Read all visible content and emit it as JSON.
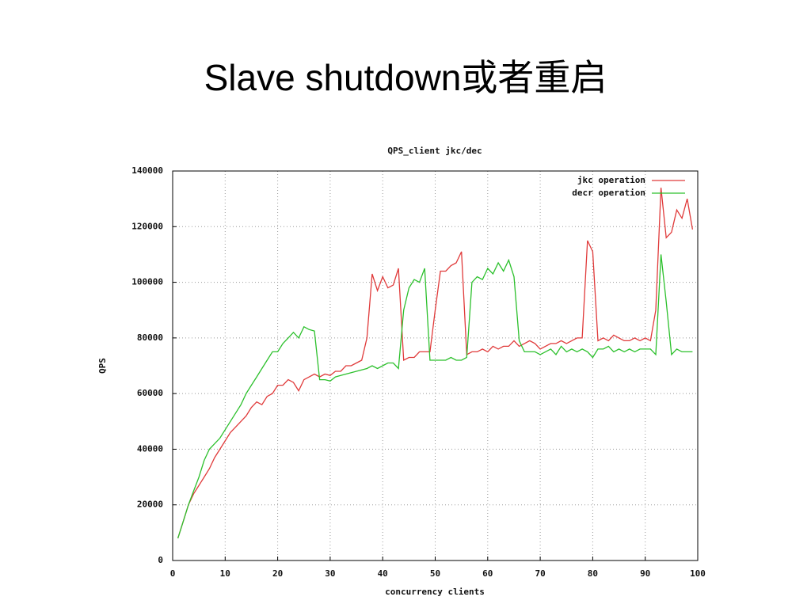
{
  "title": "Slave shutdown或者重启",
  "chart_data": {
    "type": "line",
    "title": "QPS_client jkc/dec",
    "x_label": "concurrency clients",
    "y_label": "QPS",
    "xlim": [
      0,
      100
    ],
    "xticks": [
      0,
      10,
      20,
      30,
      40,
      50,
      60,
      70,
      80,
      90,
      100
    ],
    "ylim": [
      0,
      140000
    ],
    "yticks": [
      0,
      20000,
      40000,
      60000,
      80000,
      100000,
      120000,
      140000
    ],
    "grid": true,
    "legend": "upper right",
    "x": [
      1,
      2,
      3,
      4,
      5,
      6,
      7,
      8,
      9,
      10,
      11,
      12,
      13,
      14,
      15,
      16,
      17,
      18,
      19,
      20,
      21,
      22,
      23,
      24,
      25,
      26,
      27,
      28,
      29,
      30,
      31,
      32,
      33,
      34,
      35,
      36,
      37,
      38,
      39,
      40,
      41,
      42,
      43,
      44,
      45,
      46,
      47,
      48,
      49,
      50,
      51,
      52,
      53,
      54,
      55,
      56,
      57,
      58,
      59,
      60,
      61,
      62,
      63,
      64,
      65,
      66,
      67,
      68,
      69,
      70,
      71,
      72,
      73,
      74,
      75,
      76,
      77,
      78,
      79,
      80,
      81,
      82,
      83,
      84,
      85,
      86,
      87,
      88,
      89,
      90,
      91,
      92,
      93,
      94,
      95,
      96,
      97,
      98,
      99
    ],
    "series": [
      {
        "name": "jkc operation",
        "color": "#e03a3a",
        "values": [
          8000,
          14000,
          20000,
          24000,
          27000,
          30000,
          33000,
          37000,
          40000,
          43000,
          46000,
          48000,
          50000,
          52000,
          55000,
          57000,
          56000,
          59000,
          60000,
          63000,
          63000,
          65000,
          64000,
          61000,
          65000,
          66000,
          67000,
          66000,
          67000,
          66500,
          68000,
          68000,
          70000,
          70000,
          71000,
          72000,
          80000,
          103000,
          97000,
          102000,
          98000,
          99000,
          105000,
          72000,
          73000,
          73000,
          75000,
          75000,
          75000,
          90000,
          104000,
          104000,
          106000,
          107000,
          111000,
          74000,
          75000,
          75000,
          76000,
          75000,
          77000,
          76000,
          77000,
          77000,
          79000,
          77000,
          78000,
          79000,
          78000,
          76000,
          77000,
          78000,
          78000,
          79000,
          78000,
          79000,
          80000,
          80000,
          115000,
          111000,
          79000,
          80000,
          79000,
          81000,
          80000,
          79000,
          79000,
          80000,
          79000,
          80000,
          79000,
          90000,
          134000,
          116000,
          118000,
          126000,
          123000,
          130000,
          119000
        ]
      },
      {
        "name": "decr operation",
        "color": "#2cc02c",
        "values": [
          8000,
          14000,
          20000,
          25000,
          30000,
          36000,
          40000,
          42000,
          44000,
          47000,
          50000,
          53000,
          56000,
          60000,
          63000,
          66000,
          69000,
          72000,
          75000,
          75000,
          78000,
          80000,
          82000,
          80000,
          84000,
          83000,
          82500,
          65000,
          65000,
          64500,
          66000,
          66500,
          67000,
          67500,
          68000,
          68500,
          69000,
          70000,
          69000,
          70000,
          71000,
          71000,
          69000,
          90000,
          98000,
          101000,
          100000,
          105000,
          72000,
          72000,
          72000,
          72000,
          73000,
          72000,
          72000,
          73000,
          100000,
          102000,
          101000,
          105000,
          103000,
          107000,
          104000,
          108000,
          102000,
          79000,
          75000,
          75000,
          75000,
          74000,
          75000,
          76000,
          74000,
          77000,
          75000,
          76000,
          75000,
          76000,
          75000,
          73000,
          76000,
          76000,
          77000,
          75000,
          76000,
          75000,
          76000,
          75000,
          76000,
          76000,
          76000,
          74000,
          110000,
          93000,
          74000,
          76000,
          75000,
          75000,
          75000
        ]
      }
    ]
  }
}
